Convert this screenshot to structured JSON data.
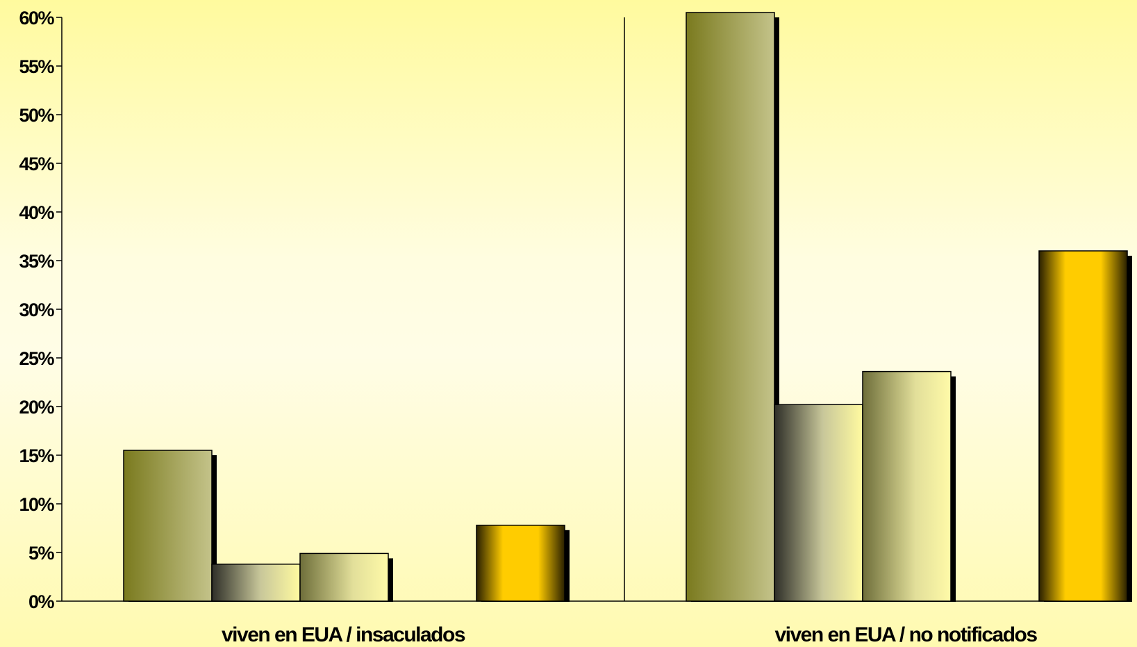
{
  "chart_data": {
    "type": "bar",
    "categories": [
      "viven en EUA / insaculados",
      "viven en EUA /  no notificados"
    ],
    "series": [
      {
        "values": [
          15.5,
          60.5
        ],
        "color": "#7a7a1e"
      },
      {
        "values": [
          3.8,
          20.2
        ],
        "color": "#3a3a30"
      },
      {
        "values": [
          4.9,
          23.6
        ],
        "color": "#6e6e3a"
      },
      {
        "values": [
          null,
          null
        ],
        "color": null
      },
      {
        "values": [
          7.8,
          36.0
        ],
        "color": "#ffcc00"
      }
    ],
    "ylim": [
      0,
      60
    ],
    "yticks": [
      "0%",
      "5%",
      "10%",
      "15%",
      "20%",
      "25%",
      "30%",
      "35%",
      "40%",
      "45%",
      "50%",
      "55%",
      "60%"
    ],
    "ytick_values": [
      0,
      5,
      10,
      15,
      20,
      25,
      30,
      35,
      40,
      45,
      50,
      55,
      60
    ],
    "grid": false,
    "legend": "none"
  }
}
